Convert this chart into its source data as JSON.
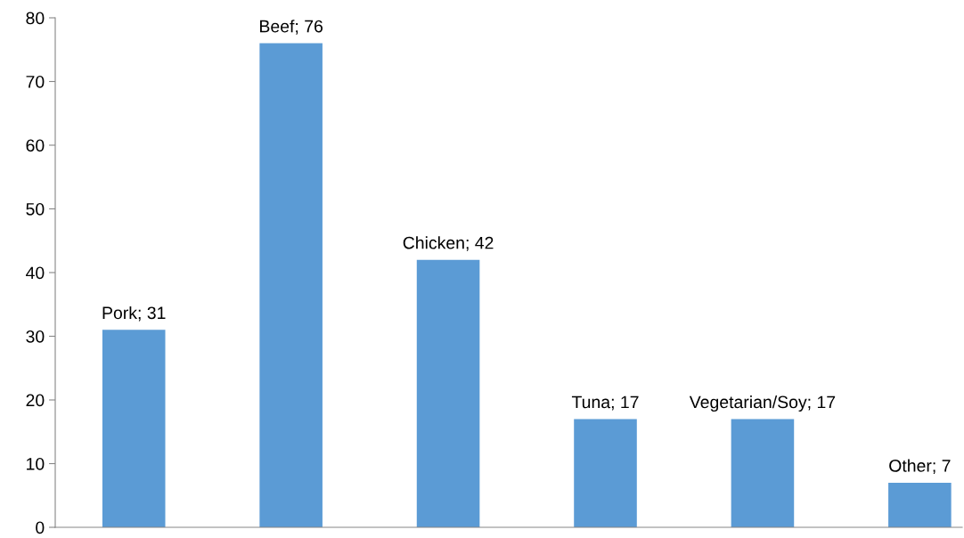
{
  "chart_data": {
    "type": "bar",
    "categories": [
      null,
      null,
      null,
      null,
      null,
      null
    ],
    "values": [
      31,
      76,
      42,
      17,
      17,
      7
    ],
    "value_labels": [
      "Pork; 31",
      "Beef; 76",
      "Chicken; 42",
      "Tuna; 17",
      "Vegetarian/Soy; 17",
      "Other; 7"
    ],
    "color": "#5b9bd5",
    "ylim": [
      0,
      80
    ],
    "yticks": [
      0,
      10,
      20,
      30,
      40,
      50,
      60,
      70,
      80
    ],
    "grid": false,
    "legend": false
  }
}
